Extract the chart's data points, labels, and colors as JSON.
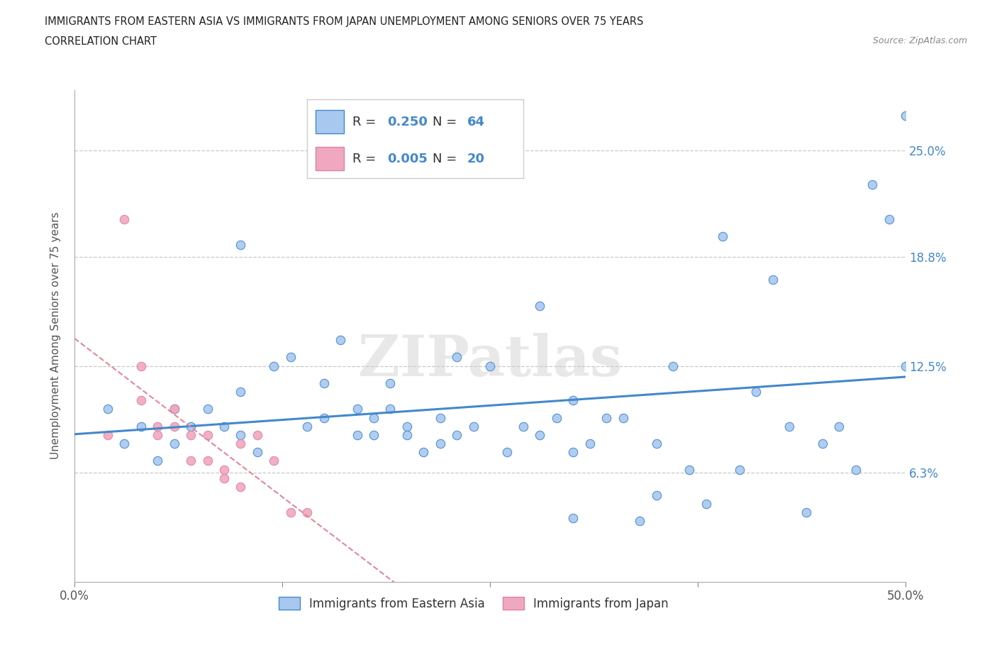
{
  "title_line1": "IMMIGRANTS FROM EASTERN ASIA VS IMMIGRANTS FROM JAPAN UNEMPLOYMENT AMONG SENIORS OVER 75 YEARS",
  "title_line2": "CORRELATION CHART",
  "source": "Source: ZipAtlas.com",
  "ylabel": "Unemployment Among Seniors over 75 years",
  "xlim": [
    0.0,
    0.5
  ],
  "ylim": [
    0.0,
    0.285
  ],
  "ytick_positions": [
    0.063,
    0.125,
    0.188,
    0.25
  ],
  "ytick_labels": [
    "6.3%",
    "12.5%",
    "18.8%",
    "25.0%"
  ],
  "blue_R": "0.250",
  "blue_N": "64",
  "pink_R": "0.005",
  "pink_N": "20",
  "blue_color": "#a8c8f0",
  "pink_color": "#f0a8c0",
  "blue_edge_color": "#4488cc",
  "pink_edge_color": "#e080a0",
  "blue_line_color": "#4488cc",
  "pink_line_color": "#e08898",
  "watermark": "ZIPatlas",
  "blue_scatter_x": [
    0.02,
    0.03,
    0.04,
    0.05,
    0.06,
    0.06,
    0.07,
    0.08,
    0.09,
    0.1,
    0.1,
    0.1,
    0.11,
    0.12,
    0.13,
    0.14,
    0.15,
    0.15,
    0.16,
    0.17,
    0.17,
    0.18,
    0.18,
    0.19,
    0.19,
    0.2,
    0.2,
    0.21,
    0.22,
    0.22,
    0.23,
    0.23,
    0.24,
    0.25,
    0.26,
    0.27,
    0.28,
    0.28,
    0.29,
    0.3,
    0.3,
    0.31,
    0.32,
    0.33,
    0.34,
    0.35,
    0.36,
    0.37,
    0.38,
    0.39,
    0.4,
    0.41,
    0.42,
    0.43,
    0.44,
    0.45,
    0.46,
    0.47,
    0.48,
    0.49,
    0.5,
    0.5,
    0.35,
    0.3
  ],
  "blue_scatter_y": [
    0.1,
    0.08,
    0.09,
    0.07,
    0.08,
    0.1,
    0.09,
    0.1,
    0.09,
    0.195,
    0.11,
    0.085,
    0.075,
    0.125,
    0.13,
    0.09,
    0.115,
    0.095,
    0.14,
    0.1,
    0.085,
    0.095,
    0.085,
    0.1,
    0.115,
    0.09,
    0.085,
    0.075,
    0.095,
    0.08,
    0.085,
    0.13,
    0.09,
    0.125,
    0.075,
    0.09,
    0.085,
    0.16,
    0.095,
    0.105,
    0.075,
    0.08,
    0.095,
    0.095,
    0.035,
    0.05,
    0.125,
    0.065,
    0.045,
    0.2,
    0.065,
    0.11,
    0.175,
    0.09,
    0.04,
    0.08,
    0.09,
    0.065,
    0.23,
    0.21,
    0.27,
    0.125,
    0.08,
    0.037
  ],
  "pink_scatter_x": [
    0.02,
    0.03,
    0.04,
    0.04,
    0.05,
    0.05,
    0.06,
    0.06,
    0.07,
    0.07,
    0.08,
    0.08,
    0.09,
    0.09,
    0.1,
    0.1,
    0.11,
    0.12,
    0.13,
    0.14
  ],
  "pink_scatter_y": [
    0.085,
    0.21,
    0.125,
    0.105,
    0.09,
    0.085,
    0.1,
    0.09,
    0.085,
    0.07,
    0.085,
    0.07,
    0.065,
    0.06,
    0.055,
    0.08,
    0.085,
    0.07,
    0.04,
    0.04
  ]
}
